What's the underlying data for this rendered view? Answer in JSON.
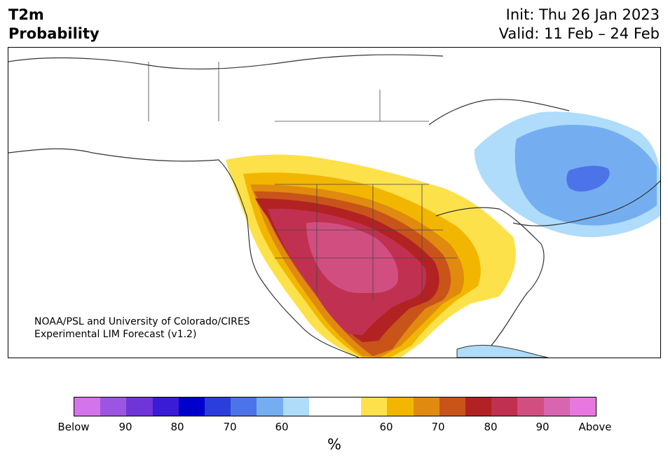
{
  "header": {
    "variable": "T2m",
    "subtitle": "Probability",
    "init": "Init: Thu 26 Jan 2023",
    "valid": "Valid: 11 Feb – 24 Feb"
  },
  "map": {
    "credit_line1": "NOAA/PSL and University of Colorado/CIRES",
    "credit_line2": "Experimental LIM Forecast (v1.2)"
  },
  "colorbar": {
    "colors": [
      "#d474ea",
      "#9b55e0",
      "#6f35d8",
      "#3a1bd6",
      "#0000cc",
      "#2a3edc",
      "#4d73e8",
      "#74aef0",
      "#aedcfa",
      "#ffffff",
      "#ffffff",
      "#fde14a",
      "#f2b600",
      "#e08a10",
      "#c8541a",
      "#b22222",
      "#c03050",
      "#d04f80",
      "#d865b0",
      "#e878e0"
    ],
    "tick_labels": [
      "Below",
      "90",
      "80",
      "70",
      "60",
      "60",
      "70",
      "80",
      "90",
      "Above"
    ],
    "unit": "%"
  },
  "legend": {
    "category_colors": {
      "below_90": "#9b55e0",
      "below_80": "#3a1bd6",
      "below_70": "#2a3edc",
      "below_60": "#74aef0",
      "below_50": "#aedcfa",
      "above_50": "#fde14a",
      "above_60": "#f2b600",
      "above_70": "#e08a10",
      "above_75": "#c8541a",
      "above_80": "#b22222",
      "above_85": "#c03050",
      "above_90": "#d04f80"
    }
  }
}
